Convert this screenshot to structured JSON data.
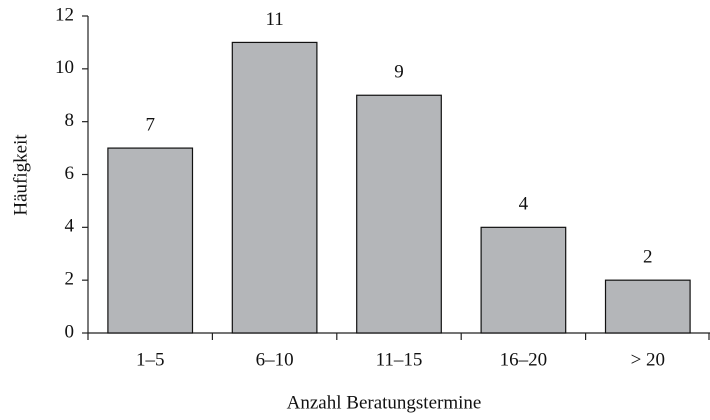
{
  "chart_data": {
    "type": "bar",
    "categories": [
      "1–5",
      "6–10",
      "11–15",
      "16–20",
      "> 20"
    ],
    "values": [
      7,
      11,
      9,
      4,
      2
    ],
    "color": "#b4b6b9",
    "xlabel": "Anzahl Beratungstermine",
    "ylabel": "Häufigkeit",
    "ylim": [
      0,
      12
    ],
    "yticks": [
      0,
      2,
      4,
      6,
      8,
      10,
      12
    ],
    "grid": false
  }
}
